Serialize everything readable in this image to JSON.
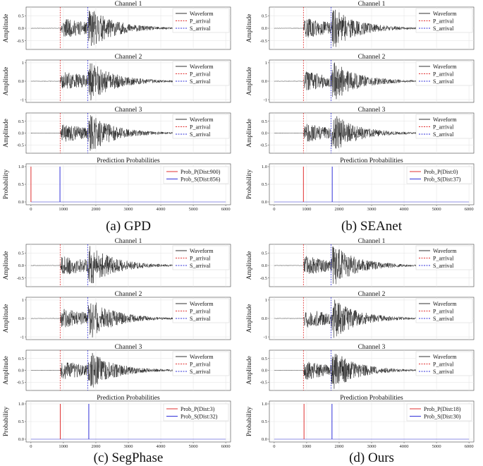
{
  "chart_data": [
    {
      "type": "line",
      "caption": "(a) GPD",
      "channels": [
        {
          "title": "Channel 1",
          "ylabel": "Amplitude",
          "yticks": [
            0.5,
            0.0,
            -0.5
          ],
          "ylim": [
            -0.85,
            0.85
          ]
        },
        {
          "title": "Channel 2",
          "ylabel": "Amplitude",
          "yticks": [
            1,
            0,
            -1
          ],
          "ylim": [
            -1.15,
            1.15
          ]
        },
        {
          "title": "Channel 3",
          "ylabel": "Amplitude",
          "yticks": [
            0.5,
            0.0,
            -0.5
          ],
          "ylim": [
            -0.85,
            0.85
          ]
        }
      ],
      "p_arrival": 900,
      "s_arrival": 1750,
      "legend": [
        "Waveform",
        "P_arrival",
        "S_arrival"
      ],
      "prob_panel": {
        "title": "Prediction Probabilities",
        "ylabel": "Probability",
        "yticks": [
          1.0,
          0.5,
          0.0
        ],
        "xticks": [
          0,
          1000,
          2000,
          3000,
          4000,
          5000,
          6000
        ],
        "xlim": [
          -150,
          6150
        ],
        "series": [
          {
            "name": "Prob_P(Dist:900)",
            "color": "#e03030",
            "peak_at": 0
          },
          {
            "name": "Prob_S(Dist:856)",
            "color": "#3030d8",
            "peak_at": 894
          }
        ]
      }
    },
    {
      "type": "line",
      "caption": "(b) SEAnet",
      "channels": [
        {
          "title": "Channel 1",
          "ylabel": "Amplitude",
          "yticks": [
            0.5,
            0.0,
            -0.5
          ],
          "ylim": [
            -0.85,
            0.85
          ]
        },
        {
          "title": "Channel 2",
          "ylabel": "Amplitude",
          "yticks": [
            1,
            0,
            -1
          ],
          "ylim": [
            -1.15,
            1.15
          ]
        },
        {
          "title": "Channel 3",
          "ylabel": "Amplitude",
          "yticks": [
            0.5,
            0.0,
            -0.5
          ],
          "ylim": [
            -0.85,
            0.85
          ]
        }
      ],
      "p_arrival": 900,
      "s_arrival": 1750,
      "legend": [
        "Waveform",
        "P_arrival",
        "S_arrival"
      ],
      "prob_panel": {
        "title": "Prediction Probabilities",
        "ylabel": "Probability",
        "yticks": [
          1.0,
          0.5,
          0.0
        ],
        "xticks": [
          0,
          1000,
          2000,
          3000,
          4000,
          5000,
          6000
        ],
        "xlim": [
          -150,
          6150
        ],
        "series": [
          {
            "name": "Prob_P(Dist:0)",
            "color": "#e03030",
            "peak_at": 900
          },
          {
            "name": "Prob_S(Dist:37)",
            "color": "#3030d8",
            "peak_at": 1787
          }
        ]
      }
    },
    {
      "type": "line",
      "caption": "(c) SegPhase",
      "channels": [
        {
          "title": "Channel 1",
          "ylabel": "Amplitude",
          "yticks": [
            0.5,
            0.0,
            -0.5
          ],
          "ylim": [
            -0.85,
            0.85
          ]
        },
        {
          "title": "Channel 2",
          "ylabel": "Amplitude",
          "yticks": [
            1,
            0,
            -1
          ],
          "ylim": [
            -1.15,
            1.15
          ]
        },
        {
          "title": "Channel 3",
          "ylabel": "Amplitude",
          "yticks": [
            0.5,
            0.0,
            -0.5
          ],
          "ylim": [
            -0.85,
            0.85
          ]
        }
      ],
      "p_arrival": 900,
      "s_arrival": 1750,
      "legend": [
        "Waveform",
        "P_arrival",
        "S_arrival"
      ],
      "prob_panel": {
        "title": "Prediction Probabilities",
        "ylabel": "Probability",
        "yticks": [
          1.0,
          0.5,
          0.0
        ],
        "xticks": [
          0,
          1000,
          2000,
          3000,
          4000,
          5000,
          6000
        ],
        "xlim": [
          -150,
          6150
        ],
        "series": [
          {
            "name": "Prob_P(Dist:3)",
            "color": "#e03030",
            "peak_at": 903
          },
          {
            "name": "Prob_S(Dist:32)",
            "color": "#3030d8",
            "peak_at": 1782
          }
        ]
      }
    },
    {
      "type": "line",
      "caption": "(d) Ours",
      "channels": [
        {
          "title": "Channel 1",
          "ylabel": "Amplitude",
          "yticks": [
            0.5,
            0.0,
            -0.5
          ],
          "ylim": [
            -0.85,
            0.85
          ]
        },
        {
          "title": "Channel 2",
          "ylabel": "Amplitude",
          "yticks": [
            1,
            0,
            -1
          ],
          "ylim": [
            -1.15,
            1.15
          ]
        },
        {
          "title": "Channel 3",
          "ylabel": "Amplitude",
          "yticks": [
            0.5,
            0.0,
            -0.5
          ],
          "ylim": [
            -0.85,
            0.85
          ]
        }
      ],
      "p_arrival": 900,
      "s_arrival": 1750,
      "legend": [
        "Waveform",
        "P_arrival",
        "S_arrival"
      ],
      "prob_panel": {
        "title": "Prediction Probabilities",
        "ylabel": "Probability",
        "yticks": [
          1.0,
          0.5,
          0.0
        ],
        "xticks": [
          0,
          1000,
          2000,
          3000,
          4000,
          5000,
          6000
        ],
        "xlim": [
          -150,
          6150
        ],
        "series": [
          {
            "name": "Prob_P(Dist:18)",
            "color": "#e03030",
            "peak_at": 918
          },
          {
            "name": "Prob_S(Dist:30)",
            "color": "#3030d8",
            "peak_at": 1780
          }
        ]
      }
    }
  ],
  "colors": {
    "waveform": "#1a1a1a",
    "p_line": "#e03030",
    "s_line": "#3030d8"
  }
}
